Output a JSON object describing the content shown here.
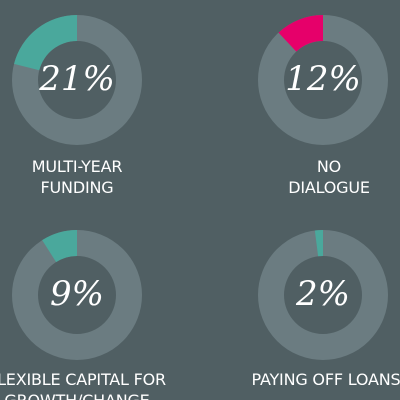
{
  "colors": {
    "background": "#505f63",
    "ring_track": "#6b7c81",
    "teal": "#4aa89c",
    "magenta": "#e6006a"
  },
  "chart_data": [
    {
      "type": "pie",
      "value": 21,
      "label": "21%",
      "title_lines": [
        "MULTI-YEAR",
        "FUNDING"
      ],
      "color": "#4aa89c"
    },
    {
      "type": "pie",
      "value": 12,
      "label": "12%",
      "title_lines": [
        "NO",
        "DIALOGUE"
      ],
      "color": "#e6006a"
    },
    {
      "type": "pie",
      "value": 9,
      "label": "9%",
      "title_lines": [
        "FLEXIBLE CAPITAL FOR",
        "GROWTH/CHANGE"
      ],
      "color": "#4aa89c"
    },
    {
      "type": "pie",
      "value": 2,
      "label": "2%",
      "title_lines": [
        "PAYING OFF LOANS"
      ],
      "color": "#4aa89c"
    }
  ]
}
